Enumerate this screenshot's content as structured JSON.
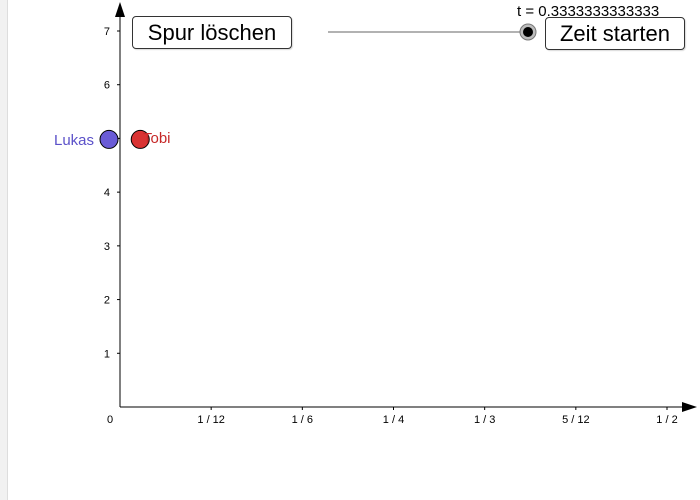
{
  "buttons": {
    "clear_trace_label": "Spur löschen",
    "start_time_label": "Zeit starten"
  },
  "slider": {
    "label": "t = 0.3333333333333",
    "value": 0.3333333333333,
    "min": 0,
    "max": 1
  },
  "points": {
    "lukas": {
      "label": "Lukas",
      "x": 0,
      "y": 5,
      "color": "#6a5bd6"
    },
    "tobi": {
      "label": "Tobi",
      "x": 0.0185,
      "y": 5,
      "color": "#d93333"
    }
  },
  "chart_data": {
    "type": "scatter",
    "title": "",
    "xlabel": "",
    "ylabel": "",
    "xlim": [
      0,
      0.58
    ],
    "ylim": [
      0,
      7.4
    ],
    "x_ticks": [
      {
        "value": 0,
        "label": "0"
      },
      {
        "value": 0.0833333,
        "label": "1 / 12"
      },
      {
        "value": 0.1666667,
        "label": "1 / 6"
      },
      {
        "value": 0.25,
        "label": "1 / 4"
      },
      {
        "value": 0.3333333,
        "label": "1 / 3"
      },
      {
        "value": 0.4166667,
        "label": "5 / 12"
      },
      {
        "value": 0.5,
        "label": "1 / 2"
      }
    ],
    "y_ticks": [
      {
        "value": 1,
        "label": "1"
      },
      {
        "value": 2,
        "label": "2"
      },
      {
        "value": 3,
        "label": "3"
      },
      {
        "value": 4,
        "label": "4"
      },
      {
        "value": 5,
        "label": "5"
      },
      {
        "value": 6,
        "label": "6"
      },
      {
        "value": 7,
        "label": "7"
      }
    ],
    "series": [
      {
        "name": "Lukas",
        "x": [
          0
        ],
        "y": [
          5
        ]
      },
      {
        "name": "Tobi",
        "x": [
          0.0185
        ],
        "y": [
          5
        ]
      }
    ],
    "grid": false
  }
}
